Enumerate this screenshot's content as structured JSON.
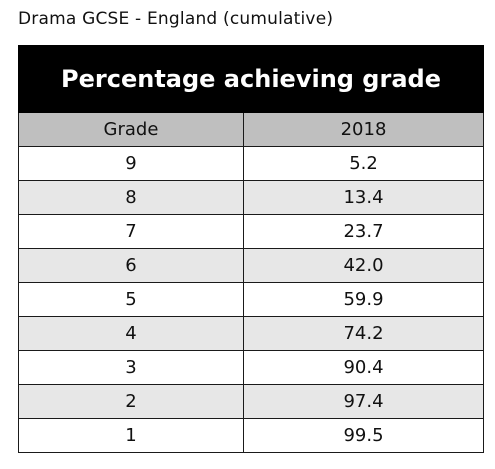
{
  "caption": "Drama GCSE - England (cumulative)",
  "chart_data": {
    "type": "table",
    "title": "Percentage achieving grade",
    "columns": [
      "Grade",
      "2018"
    ],
    "rows": [
      [
        "9",
        "5.2"
      ],
      [
        "8",
        "13.4"
      ],
      [
        "7",
        "23.7"
      ],
      [
        "6",
        "42.0"
      ],
      [
        "5",
        "59.9"
      ],
      [
        "4",
        "74.2"
      ],
      [
        "3",
        "90.4"
      ],
      [
        "2",
        "97.4"
      ],
      [
        "1",
        "99.5"
      ]
    ],
    "colors": {
      "title_background": "#000000",
      "header_background": "#bfbfbf",
      "stripe_background": "#e7e7e7"
    }
  }
}
